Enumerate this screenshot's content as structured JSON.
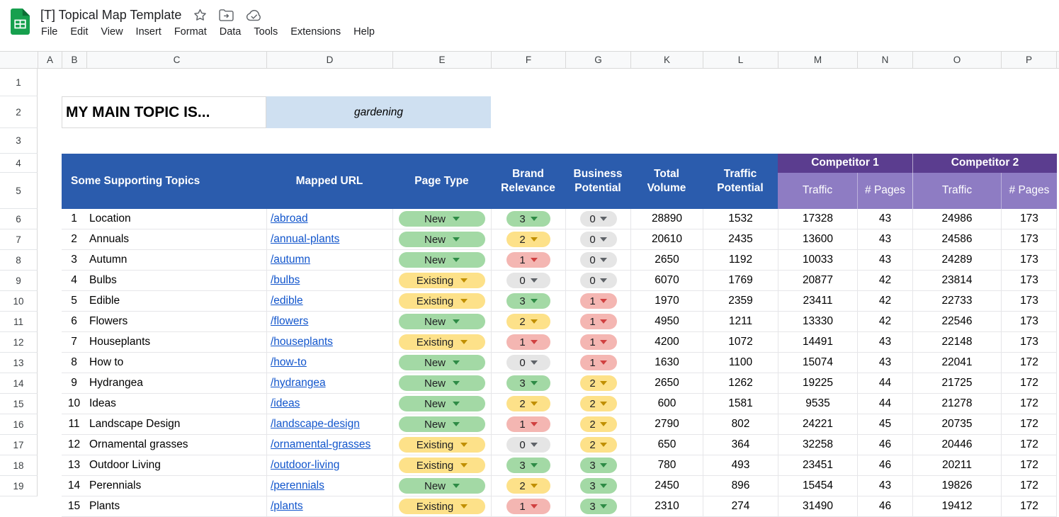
{
  "app": {
    "title": "[T] Topical Map Template",
    "menus": [
      "File",
      "Edit",
      "View",
      "Insert",
      "Format",
      "Data",
      "Tools",
      "Extensions",
      "Help"
    ]
  },
  "grid": {
    "column_letters": [
      "A",
      "B",
      "C",
      "D",
      "E",
      "F",
      "G",
      "K",
      "L",
      "M",
      "N",
      "O",
      "P"
    ],
    "row_numbers": [
      "1",
      "2",
      "3",
      "4",
      "5",
      "6",
      "7",
      "8",
      "9",
      "10",
      "11",
      "12",
      "13",
      "14",
      "15",
      "16",
      "17",
      "18",
      "19"
    ]
  },
  "topic": {
    "label": "MY MAIN TOPIC IS...",
    "value": "gardening"
  },
  "table": {
    "headers": {
      "supporting_topics": "Some Supporting Topics",
      "mapped_url": "Mapped URL",
      "page_type": "Page Type",
      "brand_relevance": "Brand Relevance",
      "business_potential": "Business Potential",
      "total_volume": "Total Volume",
      "traffic_potential": "Traffic Potential",
      "competitor_1": "Competitor 1",
      "competitor_2": "Competitor 2",
      "sub_traffic": "Traffic",
      "sub_pages": "# Pages"
    },
    "rows": [
      {
        "num": "1",
        "topic": "Location",
        "url": "/abroad",
        "page_type": {
          "label": "New",
          "color": "green"
        },
        "brand": {
          "label": "3",
          "color": "green"
        },
        "business": {
          "label": "0",
          "color": "gray"
        },
        "total_volume": "28890",
        "traffic_potential": "1532",
        "c1_traffic": "17328",
        "c1_pages": "43",
        "c2_traffic": "24986",
        "c2_pages": "173"
      },
      {
        "num": "2",
        "topic": "Annuals",
        "url": "/annual-plants",
        "page_type": {
          "label": "New",
          "color": "green"
        },
        "brand": {
          "label": "2",
          "color": "yellow"
        },
        "business": {
          "label": "0",
          "color": "gray"
        },
        "total_volume": "20610",
        "traffic_potential": "2435",
        "c1_traffic": "13600",
        "c1_pages": "43",
        "c2_traffic": "24586",
        "c2_pages": "173"
      },
      {
        "num": "3",
        "topic": "Autumn",
        "url": "/autumn",
        "page_type": {
          "label": "New",
          "color": "green"
        },
        "brand": {
          "label": "1",
          "color": "red"
        },
        "business": {
          "label": "0",
          "color": "gray"
        },
        "total_volume": "2650",
        "traffic_potential": "1192",
        "c1_traffic": "10033",
        "c1_pages": "43",
        "c2_traffic": "24289",
        "c2_pages": "173"
      },
      {
        "num": "4",
        "topic": "Bulbs",
        "url": "/bulbs",
        "page_type": {
          "label": "Existing",
          "color": "yellow"
        },
        "brand": {
          "label": "0",
          "color": "gray"
        },
        "business": {
          "label": "0",
          "color": "gray"
        },
        "total_volume": "6070",
        "traffic_potential": "1769",
        "c1_traffic": "20877",
        "c1_pages": "42",
        "c2_traffic": "23814",
        "c2_pages": "173"
      },
      {
        "num": "5",
        "topic": "Edible",
        "url": "/edible",
        "page_type": {
          "label": "Existing",
          "color": "yellow"
        },
        "brand": {
          "label": "3",
          "color": "green"
        },
        "business": {
          "label": "1",
          "color": "red"
        },
        "total_volume": "1970",
        "traffic_potential": "2359",
        "c1_traffic": "23411",
        "c1_pages": "42",
        "c2_traffic": "22733",
        "c2_pages": "173"
      },
      {
        "num": "6",
        "topic": "Flowers",
        "url": "/flowers",
        "page_type": {
          "label": "New",
          "color": "green"
        },
        "brand": {
          "label": "2",
          "color": "yellow"
        },
        "business": {
          "label": "1",
          "color": "red"
        },
        "total_volume": "4950",
        "traffic_potential": "1211",
        "c1_traffic": "13330",
        "c1_pages": "42",
        "c2_traffic": "22546",
        "c2_pages": "173"
      },
      {
        "num": "7",
        "topic": "Houseplants",
        "url": "/houseplants",
        "page_type": {
          "label": "Existing",
          "color": "yellow"
        },
        "brand": {
          "label": "1",
          "color": "red"
        },
        "business": {
          "label": "1",
          "color": "red"
        },
        "total_volume": "4200",
        "traffic_potential": "1072",
        "c1_traffic": "14491",
        "c1_pages": "43",
        "c2_traffic": "22148",
        "c2_pages": "173"
      },
      {
        "num": "8",
        "topic": "How to",
        "url": "/how-to",
        "page_type": {
          "label": "New",
          "color": "green"
        },
        "brand": {
          "label": "0",
          "color": "gray"
        },
        "business": {
          "label": "1",
          "color": "red"
        },
        "total_volume": "1630",
        "traffic_potential": "1100",
        "c1_traffic": "15074",
        "c1_pages": "43",
        "c2_traffic": "22041",
        "c2_pages": "172"
      },
      {
        "num": "9",
        "topic": "Hydrangea",
        "url": "/hydrangea",
        "page_type": {
          "label": "New",
          "color": "green"
        },
        "brand": {
          "label": "3",
          "color": "green"
        },
        "business": {
          "label": "2",
          "color": "yellow"
        },
        "total_volume": "2650",
        "traffic_potential": "1262",
        "c1_traffic": "19225",
        "c1_pages": "44",
        "c2_traffic": "21725",
        "c2_pages": "172"
      },
      {
        "num": "10",
        "topic": "Ideas",
        "url": "/ideas",
        "page_type": {
          "label": "New",
          "color": "green"
        },
        "brand": {
          "label": "2",
          "color": "yellow"
        },
        "business": {
          "label": "2",
          "color": "yellow"
        },
        "total_volume": "600",
        "traffic_potential": "1581",
        "c1_traffic": "9535",
        "c1_pages": "44",
        "c2_traffic": "21278",
        "c2_pages": "172"
      },
      {
        "num": "11",
        "topic": "Landscape Design",
        "url": "/landscape-design",
        "page_type": {
          "label": "New",
          "color": "green"
        },
        "brand": {
          "label": "1",
          "color": "red"
        },
        "business": {
          "label": "2",
          "color": "yellow"
        },
        "total_volume": "2790",
        "traffic_potential": "802",
        "c1_traffic": "24221",
        "c1_pages": "45",
        "c2_traffic": "20735",
        "c2_pages": "172"
      },
      {
        "num": "12",
        "topic": "Ornamental grasses",
        "url": "/ornamental-grasses",
        "page_type": {
          "label": "Existing",
          "color": "yellow"
        },
        "brand": {
          "label": "0",
          "color": "gray"
        },
        "business": {
          "label": "2",
          "color": "yellow"
        },
        "total_volume": "650",
        "traffic_potential": "364",
        "c1_traffic": "32258",
        "c1_pages": "46",
        "c2_traffic": "20446",
        "c2_pages": "172"
      },
      {
        "num": "13",
        "topic": "Outdoor Living",
        "url": "/outdoor-living",
        "page_type": {
          "label": "Existing",
          "color": "yellow"
        },
        "brand": {
          "label": "3",
          "color": "green"
        },
        "business": {
          "label": "3",
          "color": "green"
        },
        "total_volume": "780",
        "traffic_potential": "493",
        "c1_traffic": "23451",
        "c1_pages": "46",
        "c2_traffic": "20211",
        "c2_pages": "172"
      },
      {
        "num": "14",
        "topic": "Perennials",
        "url": "/perennials",
        "page_type": {
          "label": "New",
          "color": "green"
        },
        "brand": {
          "label": "2",
          "color": "yellow"
        },
        "business": {
          "label": "3",
          "color": "green"
        },
        "total_volume": "2450",
        "traffic_potential": "896",
        "c1_traffic": "15454",
        "c1_pages": "43",
        "c2_traffic": "19826",
        "c2_pages": "172"
      },
      {
        "num": "15",
        "topic": "Plants",
        "url": "/plants",
        "page_type": {
          "label": "Existing",
          "color": "yellow"
        },
        "brand": {
          "label": "1",
          "color": "red"
        },
        "business": {
          "label": "3",
          "color": "green"
        },
        "total_volume": "2310",
        "traffic_potential": "274",
        "c1_traffic": "31490",
        "c1_pages": "46",
        "c2_traffic": "19412",
        "c2_pages": "172"
      }
    ]
  },
  "colors": {
    "header_blue": "#2b5cad",
    "competitor_dark_purple": "#5b3d8f",
    "competitor_light_purple": "#8e7cc3",
    "topic_cell_blue": "#cfe0f1",
    "link_blue": "#1155cc",
    "pill_green": "#a3d9a5",
    "pill_yellow": "#fde189",
    "pill_red": "#f4b6b2",
    "pill_gray": "#e5e5e5"
  }
}
